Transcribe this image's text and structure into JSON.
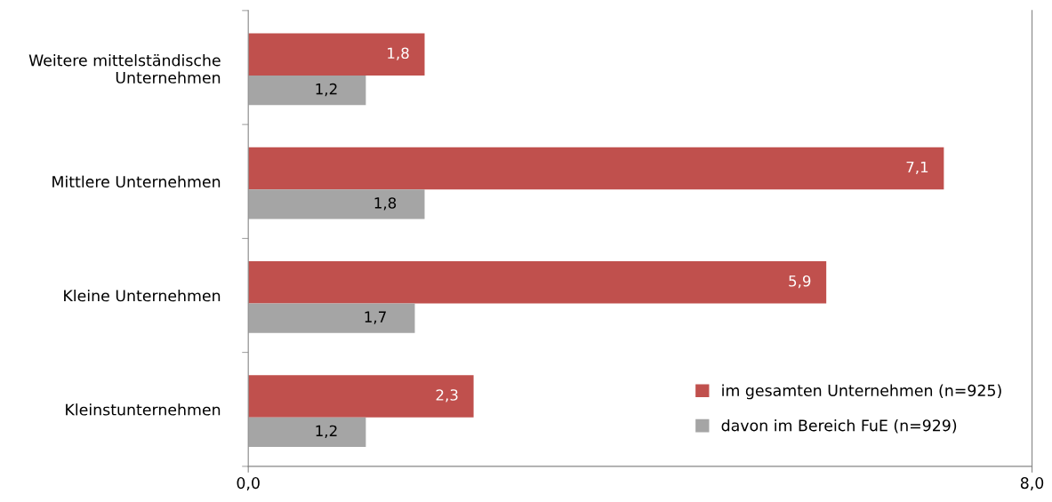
{
  "chart_data": {
    "type": "bar",
    "orientation": "horizontal",
    "categories": [
      "Weitere mittelständische Unternehmen",
      "Mittlere Unternehmen",
      "Kleine Unternehmen",
      "Kleinstunternehmen"
    ],
    "series": [
      {
        "name": "im gesamten Unternehmen (n=925)",
        "color": "#c0504d",
        "values": [
          1.8,
          7.1,
          5.9,
          2.3
        ],
        "value_labels": [
          "1,8",
          "7,1",
          "5,9",
          "2,3"
        ]
      },
      {
        "name": "davon im Bereich FuE (n=929)",
        "color": "#a5a5a5",
        "values": [
          1.2,
          1.8,
          1.7,
          1.2
        ],
        "value_labels": [
          "1,2",
          "1,8",
          "1,7",
          "1,2"
        ]
      }
    ],
    "xlim": [
      0,
      8
    ],
    "xticks": [
      {
        "value": 0,
        "label": "0,0"
      },
      {
        "value": 8,
        "label": "8,0"
      }
    ],
    "grid": false,
    "legend": "bottom right"
  }
}
